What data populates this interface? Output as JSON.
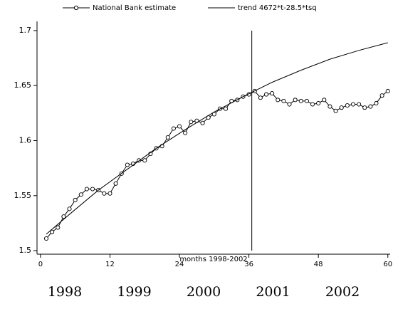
{
  "chart_data": {
    "type": "line",
    "x_label": "months 1998-2002",
    "xlim": [
      -0.6,
      60.4
    ],
    "xticks": [
      0,
      12,
      24,
      36,
      48,
      60
    ],
    "ylim": [
      1.4968,
      1.7084
    ],
    "yticks": [
      1.5,
      1.55,
      1.6,
      1.65,
      1.7
    ],
    "legend": "top",
    "vline": 36.5,
    "period_labels": [
      "1998",
      "1999",
      "2000",
      "2001",
      "2002"
    ],
    "series": [
      {
        "name": "National Bank estimate",
        "color": "#000000",
        "marker": "circle",
        "x": [
          1,
          2,
          3,
          4,
          5,
          6,
          7,
          8,
          9,
          10,
          11,
          12,
          13,
          14,
          15,
          16,
          17,
          18,
          19,
          20,
          21,
          22,
          23,
          24,
          25,
          26,
          27,
          28,
          29,
          30,
          31,
          32,
          33,
          34,
          35,
          36,
          37,
          38,
          39,
          40,
          41,
          42,
          43,
          44,
          45,
          46,
          47,
          48,
          49,
          50,
          51,
          52,
          53,
          54,
          55,
          56,
          57,
          58,
          59,
          60
        ],
        "values": [
          1.511,
          1.517,
          1.521,
          1.531,
          1.538,
          1.546,
          1.551,
          1.556,
          1.556,
          1.555,
          1.552,
          1.552,
          1.561,
          1.57,
          1.578,
          1.579,
          1.582,
          1.582,
          1.588,
          1.593,
          1.595,
          1.603,
          1.611,
          1.613,
          1.607,
          1.617,
          1.618,
          1.616,
          1.621,
          1.624,
          1.629,
          1.629,
          1.636,
          1.637,
          1.64,
          1.642,
          1.645,
          1.639,
          1.642,
          1.643,
          1.637,
          1.636,
          1.633,
          1.637,
          1.636,
          1.636,
          1.633,
          1.634,
          1.637,
          1.631,
          1.627,
          1.63,
          1.632,
          1.633,
          1.633,
          1.63,
          1.631,
          1.634,
          1.641,
          1.645
        ]
      },
      {
        "name": "trend 4672*t-28.5*tsq",
        "color": "#000000",
        "marker": "none",
        "x": [
          1,
          5,
          10,
          15,
          20,
          25,
          30,
          35,
          40,
          45,
          50,
          55,
          60
        ],
        "values": [
          1.515,
          1.533,
          1.555,
          1.574,
          1.593,
          1.61,
          1.626,
          1.64,
          1.653,
          1.664,
          1.674,
          1.682,
          1.689
        ]
      }
    ]
  }
}
